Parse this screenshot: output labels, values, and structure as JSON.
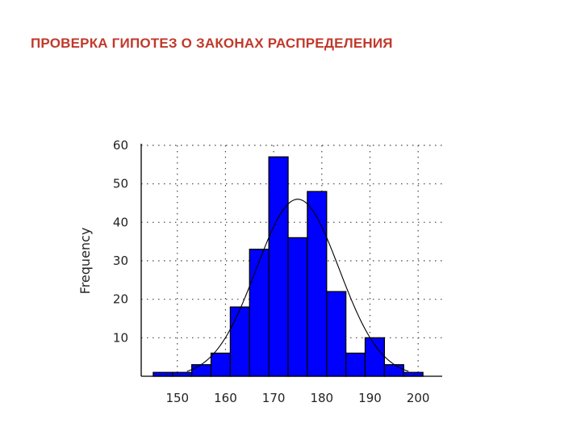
{
  "slide": {
    "title": "ПРОВЕРКА ГИПОТЕЗ О ЗАКОНАХ РАСПРЕДЕЛЕНИЯ"
  },
  "colors": {
    "title": "#c0392b",
    "bar_fill": "#0000ff",
    "bar_stroke": "#000000",
    "curve": "#000000",
    "grid": "#444444"
  },
  "chart_data": {
    "type": "bar",
    "subtype": "histogram",
    "ylabel": "Frequency",
    "xlabel": "",
    "xlim": [
      142.5,
      205
    ],
    "ylim": [
      0,
      60
    ],
    "xticks": [
      150,
      160,
      170,
      180,
      190,
      200
    ],
    "yticks": [
      10,
      20,
      30,
      40,
      50,
      60
    ],
    "grid": true,
    "bin_width": 4,
    "bins": [
      {
        "start": 145,
        "end": 149,
        "value": 1
      },
      {
        "start": 149,
        "end": 153,
        "value": 1
      },
      {
        "start": 153,
        "end": 157,
        "value": 3
      },
      {
        "start": 157,
        "end": 161,
        "value": 6
      },
      {
        "start": 161,
        "end": 165,
        "value": 18
      },
      {
        "start": 165,
        "end": 169,
        "value": 33
      },
      {
        "start": 169,
        "end": 173,
        "value": 57
      },
      {
        "start": 173,
        "end": 177,
        "value": 36
      },
      {
        "start": 177,
        "end": 181,
        "value": 48
      },
      {
        "start": 181,
        "end": 185,
        "value": 22
      },
      {
        "start": 185,
        "end": 189,
        "value": 6
      },
      {
        "start": 189,
        "end": 193,
        "value": 10
      },
      {
        "start": 193,
        "end": 197,
        "value": 3
      },
      {
        "start": 197,
        "end": 201,
        "value": 1
      }
    ],
    "fitted_curve": {
      "type": "normal",
      "mean": 175,
      "sd": 8.6,
      "peak": 46,
      "x_range": [
        152,
        198
      ]
    }
  }
}
